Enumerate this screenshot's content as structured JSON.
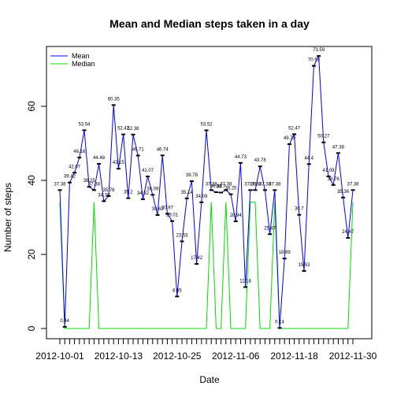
{
  "chart_data": {
    "type": "line",
    "title": "Mean and Median steps taken in a day",
    "xlabel": "Date",
    "ylabel": "Number of steps",
    "ylim": [
      0,
      75
    ],
    "y_ticks": [
      0,
      20,
      40,
      60
    ],
    "x_tick_labels": [
      "2012-10-01",
      "2012-10-13",
      "2012-10-25",
      "2012-11-06",
      "2012-11-18",
      "2012-11-30"
    ],
    "x_tick_positions": [
      0,
      12,
      24,
      36,
      48,
      60
    ],
    "x_count": 61,
    "legend": {
      "placement": "top-left",
      "entries": [
        "Mean",
        "Median"
      ]
    },
    "series": [
      {
        "name": "Mean",
        "color": "#0000FF",
        "values": [
          37.38,
          0.44,
          39.42,
          42.07,
          46.16,
          53.54,
          38.25,
          37.38,
          44.48,
          34.38,
          35.78,
          60.35,
          43.15,
          52.42,
          35.2,
          52.38,
          46.71,
          34.92,
          41.07,
          36.09,
          30.63,
          46.74,
          30.97,
          29.01,
          8.65,
          23.53,
          35.14,
          39.78,
          17.42,
          34.09,
          53.52,
          37.38,
          36.81,
          36.7,
          37.38,
          36.25,
          28.94,
          44.73,
          11.18,
          37.38,
          37.38,
          43.78,
          37.38,
          25.47,
          37.38,
          0.14,
          18.89,
          49.79,
          52.47,
          30.7,
          15.53,
          44.4,
          70.93,
          73.59,
          50.27,
          41.09,
          38.76,
          47.38,
          35.36,
          24.47,
          37.38
        ],
        "labels": [
          "37.38",
          "0.44",
          "39.42",
          "42.07",
          "46.16",
          "53.54",
          "38.25",
          "37.38",
          "44.48",
          "34.38",
          "35.78",
          "60.35",
          "43.15",
          "52.42",
          "35.2",
          "52.38",
          "46.71",
          "34.92",
          "41.07",
          "36.09",
          "30.63",
          "46.74",
          "30.97",
          "29.01",
          "8.65",
          "23.53",
          "35.14",
          "39.78",
          "17.42",
          "34.09",
          "53.52",
          "37.38",
          "36.81",
          "36.7",
          "37.38",
          "36.25",
          "28.94",
          "44.73",
          "11.18",
          "37.38",
          "37.38",
          "43.78",
          "37.38",
          "25.47",
          "37.38",
          "0.14",
          "18.89",
          "49.79",
          "52.47",
          "30.7",
          "15.53",
          "44.4",
          "70.93",
          "73.59",
          "50.27",
          "41.09",
          "38.76",
          "47.38",
          "35.36",
          "24.47",
          "37.38"
        ]
      },
      {
        "name": "Median",
        "color": "#00DD00",
        "values": [
          34.11,
          0,
          0,
          0,
          0,
          0,
          0,
          34.11,
          0,
          0,
          0,
          0,
          0,
          0,
          0,
          0,
          0,
          0,
          0,
          0,
          0,
          0,
          0,
          0,
          0,
          0,
          0,
          0,
          0,
          0,
          0,
          34.11,
          0,
          0,
          34.11,
          0,
          0,
          0,
          0,
          34.11,
          34.11,
          0,
          0,
          0,
          34.11,
          0,
          0,
          0,
          0,
          0,
          0,
          0,
          0,
          0,
          0,
          0,
          0,
          0,
          0,
          0,
          34.11
        ]
      }
    ]
  }
}
